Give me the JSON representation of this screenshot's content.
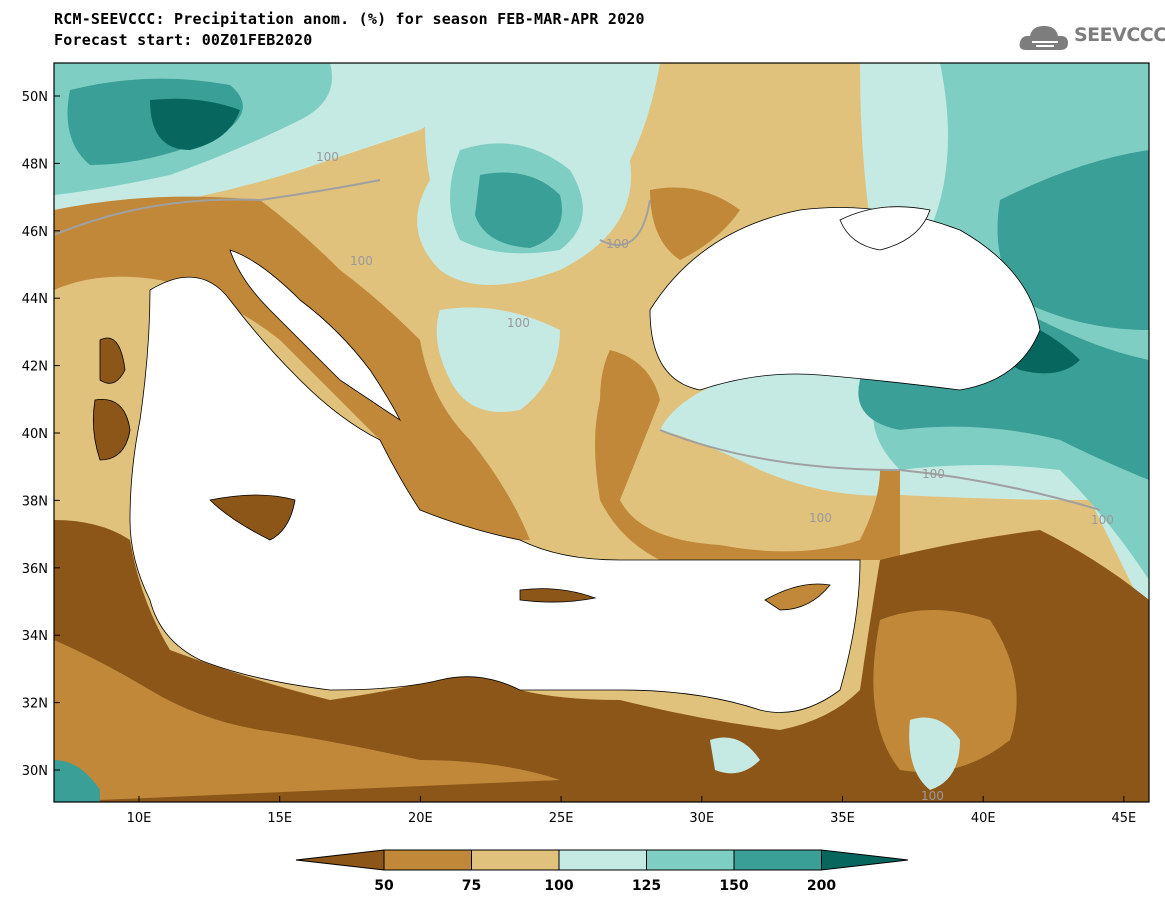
{
  "title": {
    "line1": "RCM-SEEVCCC: Precipitation anom. (%) for season FEB-MAR-APR 2020",
    "line2": "Forecast start: 00Z01FEB2020"
  },
  "logo": {
    "text": "SEEVCCC",
    "icon": "cloud-icon"
  },
  "map": {
    "lat_labels": [
      "50N",
      "48N",
      "46N",
      "44N",
      "42N",
      "40N",
      "38N",
      "36N",
      "34N",
      "32N",
      "30N"
    ],
    "lon_labels": [
      "10E",
      "15E",
      "20E",
      "25E",
      "30E",
      "35E",
      "40E",
      "45E"
    ],
    "contour_labels": [
      "100",
      "100",
      "100",
      "100",
      "100",
      "100",
      "100",
      "100"
    ]
  },
  "colors": {
    "very_dry": "#8c5618",
    "dry": "#c08838",
    "slightly_dry": "#e0c27d",
    "slightly_wet": "#c5eae4",
    "wet": "#7fcec3",
    "very_wet": "#3a9f96",
    "extreme_wet": "#07675f",
    "sea": "#ffffff"
  },
  "colorbar": {
    "labels": [
      "50",
      "75",
      "100",
      "125",
      "150",
      "200"
    ]
  }
}
